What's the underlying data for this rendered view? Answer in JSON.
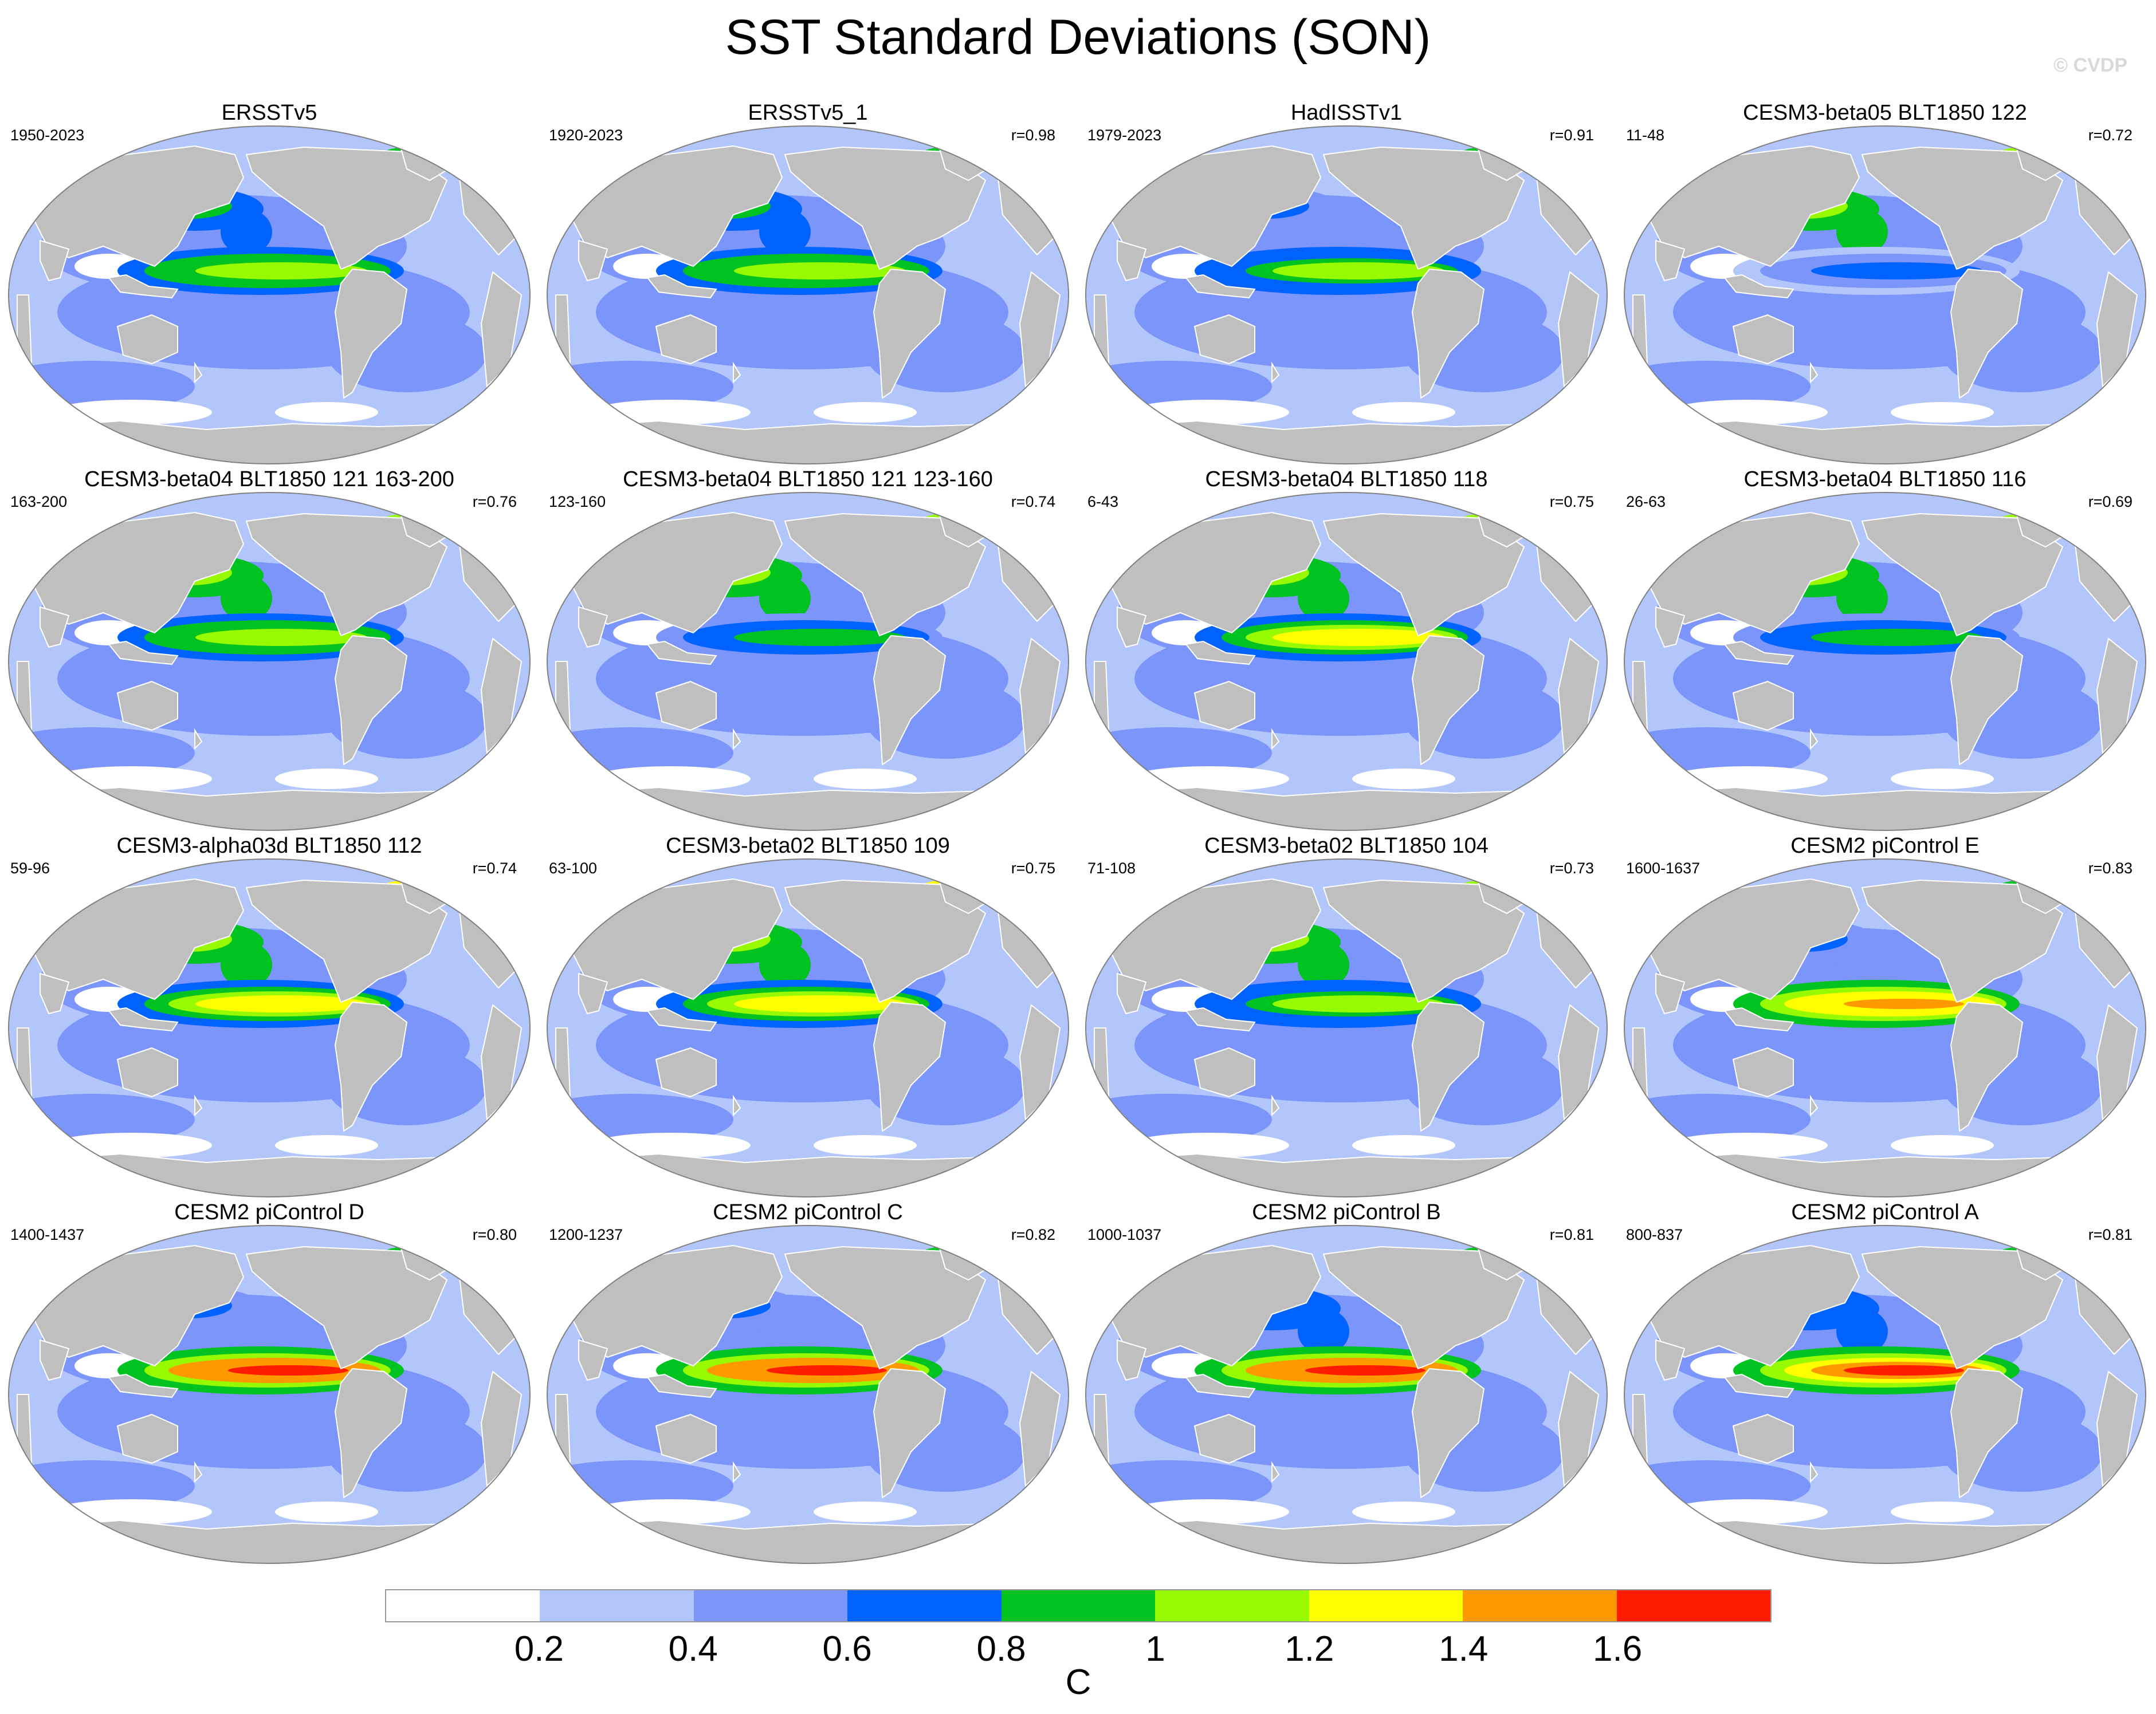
{
  "page": {
    "title": "SST Standard Deviations (SON)",
    "watermark": "© CVDP"
  },
  "colorbar": {
    "colors": [
      "#ffffff",
      "#b2c6fb",
      "#7b95fa",
      "#0062ff",
      "#00c321",
      "#98fa00",
      "#ffff00",
      "#ff9900",
      "#ff1c00"
    ],
    "ticks": [
      "0.2",
      "0.4",
      "0.6",
      "0.8",
      "1",
      "1.2",
      "1.4",
      "1.6"
    ],
    "units": "C"
  },
  "map_style": {
    "land_color": "#bfbfbf",
    "coast_color": "#ffffff",
    "border_color": "#808080"
  },
  "panels": [
    {
      "title": "ERSSTv5",
      "period": "1950-2023",
      "r": "",
      "enso": 1.15,
      "npac": 0.8
    },
    {
      "title": "ERSSTv5_1",
      "period": "1920-2023",
      "r": "r=0.98",
      "enso": 1.15,
      "npac": 0.8
    },
    {
      "title": "HadISSTv1",
      "period": "1979-2023",
      "r": "r=0.91",
      "enso": 1.1,
      "npac": 0.7
    },
    {
      "title": "CESM3-beta05 BLT1850 122",
      "period": "11-48",
      "r": "r=0.72",
      "enso": 0.7,
      "npac": 1.0
    },
    {
      "title": "CESM3-beta04 BLT1850 121 163-200",
      "period": "163-200",
      "r": "r=0.76",
      "enso": 1.15,
      "npac": 1.0
    },
    {
      "title": "CESM3-beta04 BLT1850 121 123-160",
      "period": "123-160",
      "r": "r=0.74",
      "enso": 0.95,
      "npac": 1.0
    },
    {
      "title": "CESM3-beta04 BLT1850 118",
      "period": "6-43",
      "r": "r=0.75",
      "enso": 1.3,
      "npac": 1.0
    },
    {
      "title": "CESM3-beta04 BLT1850 116",
      "period": "26-63",
      "r": "r=0.69",
      "enso": 0.9,
      "npac": 1.0
    },
    {
      "title": "CESM3-alpha03d BLT1850 112",
      "period": "59-96",
      "r": "r=0.74",
      "enso": 1.3,
      "npac": 1.1
    },
    {
      "title": "CESM3-beta02 BLT1850 109",
      "period": "63-100",
      "r": "r=0.75",
      "enso": 1.3,
      "npac": 1.1
    },
    {
      "title": "CESM3-beta02 BLT1850 104",
      "period": "71-108",
      "r": "r=0.73",
      "enso": 1.1,
      "npac": 1.0
    },
    {
      "title": "CESM2 piControl E",
      "period": "1600-1637",
      "r": "r=0.83",
      "enso": 1.5,
      "npac": 0.7
    },
    {
      "title": "CESM2 piControl D",
      "period": "1400-1437",
      "r": "r=0.80",
      "enso": 1.7,
      "npac": 0.7
    },
    {
      "title": "CESM2 piControl C",
      "period": "1200-1237",
      "r": "r=0.82",
      "enso": 1.7,
      "npac": 0.7
    },
    {
      "title": "CESM2 piControl B",
      "period": "1000-1037",
      "r": "r=0.81",
      "enso": 1.7,
      "npac": 0.75
    },
    {
      "title": "CESM2 piControl A",
      "period": "800-837",
      "r": "r=0.81",
      "enso": 1.6,
      "npac": 0.75
    }
  ]
}
